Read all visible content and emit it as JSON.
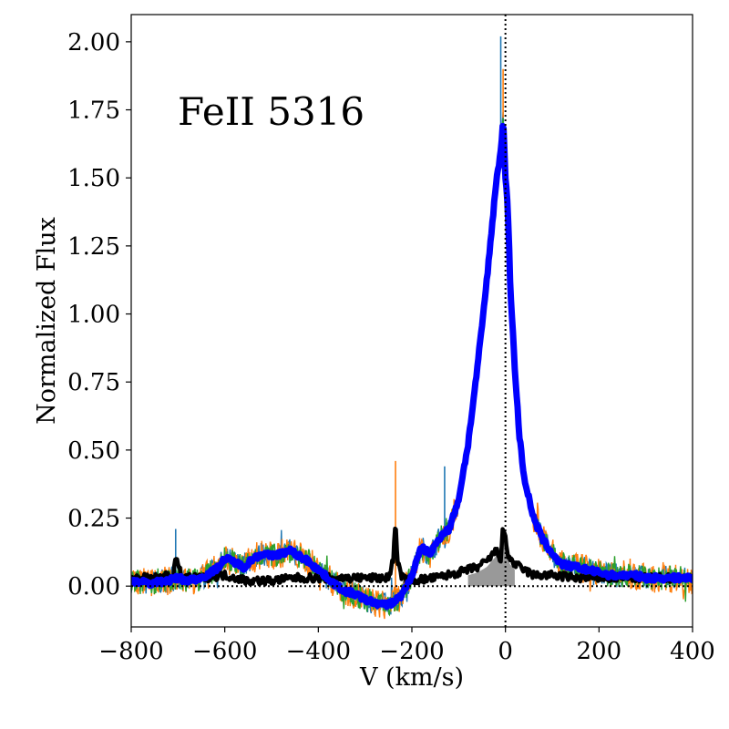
{
  "chart_data": {
    "type": "line",
    "title": "",
    "annotation": "FeII 5316",
    "xlabel": "V (km/s)",
    "ylabel": "Normalized Flux",
    "xlim": [
      -800,
      400
    ],
    "ylim": [
      -0.15,
      2.1
    ],
    "xticks": [
      -800,
      -600,
      -400,
      -200,
      0,
      200,
      400
    ],
    "xtick_labels": [
      "−800",
      "−600",
      "−400",
      "−200",
      "0",
      "200",
      "400"
    ],
    "yticks": [
      0.0,
      0.25,
      0.5,
      0.75,
      1.0,
      1.25,
      1.5,
      1.75,
      2.0
    ],
    "ytick_labels": [
      "0.00",
      "0.25",
      "0.50",
      "0.75",
      "1.00",
      "1.25",
      "1.50",
      "1.75",
      "2.00"
    ],
    "grid": false,
    "reference_lines": {
      "vertical_x": 0,
      "horizontal_y": 0,
      "style": "dotted"
    },
    "colors": {
      "mean_profile": "#0000ff",
      "residual": "#000000",
      "residual_fill": "#999999",
      "noisy_spectra": [
        "#1f77b4",
        "#ff7f0e",
        "#2ca02c"
      ]
    },
    "series": [
      {
        "role": "mean_profile",
        "x": [
          -800,
          -760,
          -720,
          -700,
          -680,
          -650,
          -620,
          -600,
          -580,
          -560,
          -540,
          -520,
          -500,
          -480,
          -460,
          -440,
          -420,
          -400,
          -380,
          -360,
          -340,
          -320,
          -300,
          -280,
          -260,
          -240,
          -220,
          -200,
          -180,
          -160,
          -150,
          -140,
          -130,
          -120,
          -100,
          -80,
          -60,
          -40,
          -30,
          -20,
          -10,
          -5,
          0,
          5,
          10,
          20,
          30,
          40,
          60,
          80,
          100,
          120,
          150,
          175,
          200,
          225,
          250,
          275,
          300,
          325,
          350,
          375,
          400
        ],
        "y": [
          0.02,
          0.01,
          0.02,
          0.03,
          0.02,
          0.03,
          0.06,
          0.1,
          0.09,
          0.07,
          0.1,
          0.12,
          0.11,
          0.12,
          0.13,
          0.11,
          0.09,
          0.06,
          0.03,
          0.0,
          -0.02,
          -0.03,
          -0.05,
          -0.06,
          -0.07,
          -0.06,
          -0.03,
          0.04,
          0.14,
          0.12,
          0.15,
          0.18,
          0.2,
          0.21,
          0.32,
          0.52,
          0.8,
          1.12,
          1.3,
          1.48,
          1.6,
          1.72,
          1.5,
          1.4,
          1.12,
          0.8,
          0.55,
          0.4,
          0.25,
          0.17,
          0.12,
          0.08,
          0.07,
          0.06,
          0.05,
          0.04,
          0.04,
          0.04,
          0.03,
          0.03,
          0.03,
          0.03,
          0.03
        ]
      },
      {
        "role": "residual",
        "x": [
          -800,
          -750,
          -710,
          -705,
          -700,
          -690,
          -650,
          -600,
          -550,
          -500,
          -450,
          -400,
          -350,
          -300,
          -250,
          -240,
          -235,
          -230,
          -220,
          -200,
          -150,
          -100,
          -60,
          -40,
          -20,
          -10,
          -5,
          0,
          5,
          10,
          20,
          40,
          60,
          80,
          100,
          150,
          200,
          250,
          300,
          350,
          400
        ],
        "y": [
          0.03,
          0.03,
          0.04,
          0.11,
          0.07,
          0.03,
          0.03,
          0.04,
          0.02,
          0.02,
          0.03,
          0.03,
          0.03,
          0.03,
          0.03,
          0.1,
          0.23,
          0.08,
          0.03,
          0.02,
          0.03,
          0.05,
          0.07,
          0.09,
          0.13,
          0.1,
          0.22,
          0.17,
          0.12,
          0.1,
          0.08,
          0.06,
          0.04,
          0.04,
          0.04,
          0.03,
          0.03,
          0.03,
          0.03,
          0.03,
          0.03
        ]
      }
    ]
  }
}
